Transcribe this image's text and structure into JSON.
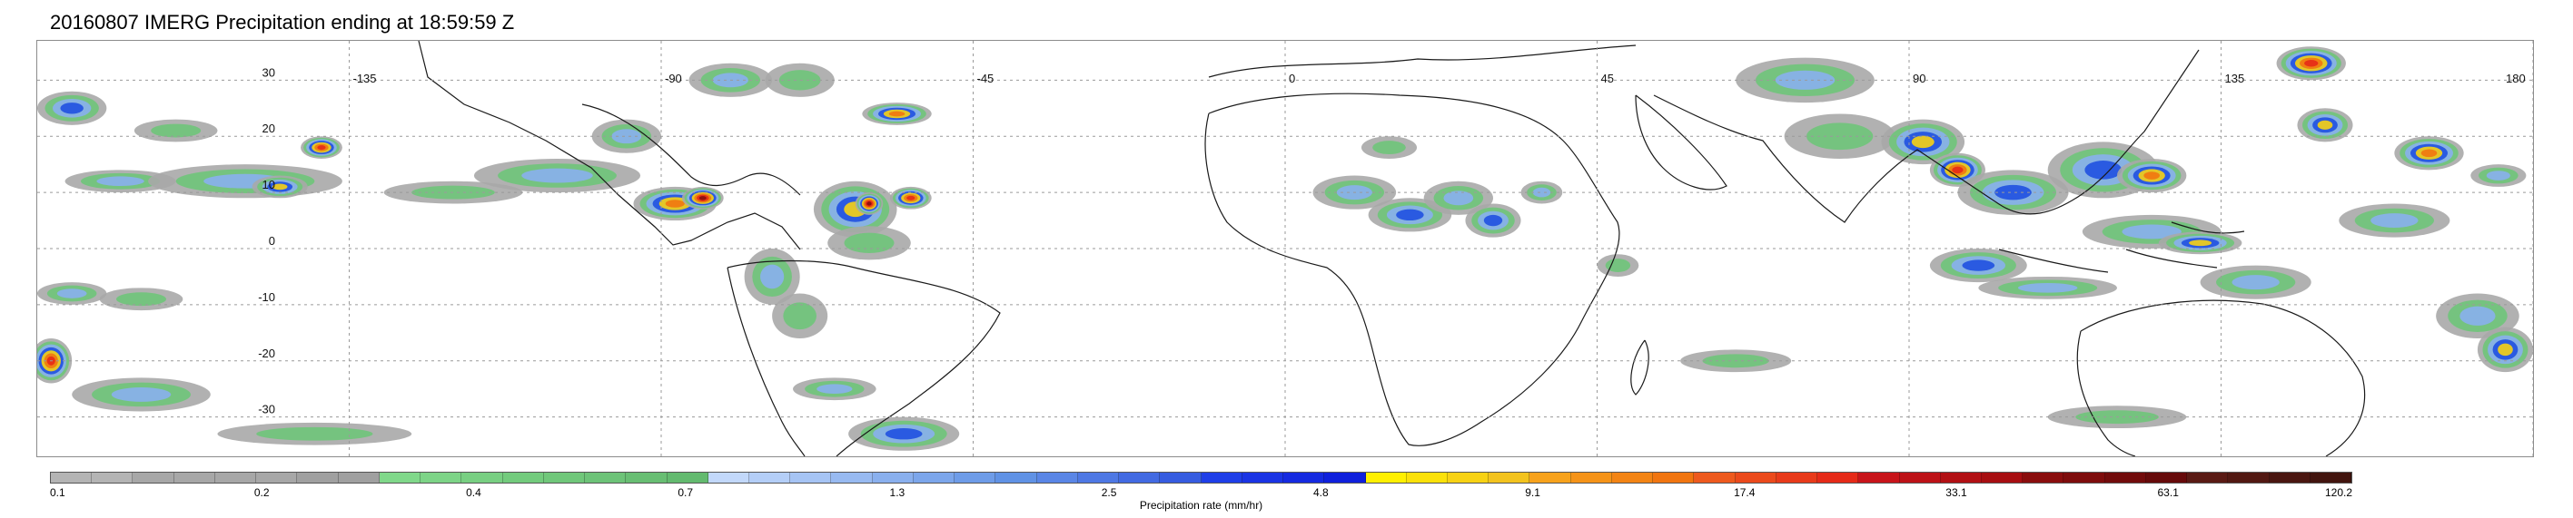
{
  "title": "20160807 IMERG Precipitation ending at 18:59:59 Z",
  "map": {
    "lon_range": [
      -180,
      180
    ],
    "lat_range": [
      -37,
      37
    ],
    "lon_ticks": [
      {
        "value": -135,
        "label": "-135"
      },
      {
        "value": -90,
        "label": "-90"
      },
      {
        "value": -45,
        "label": "-45"
      },
      {
        "value": 0,
        "label": "0"
      },
      {
        "value": 45,
        "label": "45"
      },
      {
        "value": 90,
        "label": "90"
      },
      {
        "value": 135,
        "label": "135"
      },
      {
        "value": 180,
        "label": "180"
      }
    ],
    "lat_ticks": [
      {
        "value": 30,
        "label": "30"
      },
      {
        "value": 20,
        "label": "20"
      },
      {
        "value": 10,
        "label": "10"
      },
      {
        "value": 0,
        "label": "0"
      },
      {
        "value": -10,
        "label": "-10"
      },
      {
        "value": -20,
        "label": "-20"
      },
      {
        "value": -30,
        "label": "-30"
      }
    ],
    "grid": true,
    "precip_cells": [
      {
        "lon": -175,
        "lat": 25,
        "rx": 5,
        "ry": 3,
        "level": 4
      },
      {
        "lon": -168,
        "lat": 12,
        "rx": 8,
        "ry": 2,
        "level": 3
      },
      {
        "lon": -160,
        "lat": 21,
        "rx": 6,
        "ry": 2,
        "level": 2
      },
      {
        "lon": -150,
        "lat": 12,
        "rx": 14,
        "ry": 3,
        "level": 3
      },
      {
        "lon": -145,
        "lat": 11,
        "rx": 4,
        "ry": 2,
        "level": 5
      },
      {
        "lon": -139,
        "lat": 18,
        "rx": 3,
        "ry": 2,
        "level": 7
      },
      {
        "lon": -120,
        "lat": 10,
        "rx": 10,
        "ry": 2,
        "level": 2
      },
      {
        "lon": -105,
        "lat": 13,
        "rx": 12,
        "ry": 3,
        "level": 3
      },
      {
        "lon": -95,
        "lat": 20,
        "rx": 5,
        "ry": 3,
        "level": 3
      },
      {
        "lon": -88,
        "lat": 8,
        "rx": 6,
        "ry": 3,
        "level": 6
      },
      {
        "lon": -84,
        "lat": 9,
        "rx": 3,
        "ry": 2,
        "level": 8
      },
      {
        "lon": -80,
        "lat": 30,
        "rx": 6,
        "ry": 3,
        "level": 3
      },
      {
        "lon": -70,
        "lat": 30,
        "rx": 5,
        "ry": 3,
        "level": 2
      },
      {
        "lon": -62,
        "lat": 7,
        "rx": 6,
        "ry": 5,
        "level": 5
      },
      {
        "lon": -60,
        "lat": 8,
        "rx": 2,
        "ry": 2,
        "level": 8
      },
      {
        "lon": -54,
        "lat": 9,
        "rx": 3,
        "ry": 2,
        "level": 7
      },
      {
        "lon": -60,
        "lat": 1,
        "rx": 6,
        "ry": 3,
        "level": 2
      },
      {
        "lon": -56,
        "lat": 24,
        "rx": 5,
        "ry": 2,
        "level": 6
      },
      {
        "lon": -74,
        "lat": -5,
        "rx": 4,
        "ry": 5,
        "level": 3
      },
      {
        "lon": -70,
        "lat": -12,
        "rx": 4,
        "ry": 4,
        "level": 2
      },
      {
        "lon": -175,
        "lat": -8,
        "rx": 5,
        "ry": 2,
        "level": 3
      },
      {
        "lon": -165,
        "lat": -9,
        "rx": 6,
        "ry": 2,
        "level": 2
      },
      {
        "lon": -178,
        "lat": -20,
        "rx": 3,
        "ry": 4,
        "level": 7
      },
      {
        "lon": -165,
        "lat": -26,
        "rx": 10,
        "ry": 3,
        "level": 3
      },
      {
        "lon": -140,
        "lat": -33,
        "rx": 14,
        "ry": 2,
        "level": 2
      },
      {
        "lon": -65,
        "lat": -25,
        "rx": 6,
        "ry": 2,
        "level": 3
      },
      {
        "lon": -55,
        "lat": -33,
        "rx": 8,
        "ry": 3,
        "level": 4
      },
      {
        "lon": 10,
        "lat": 10,
        "rx": 6,
        "ry": 3,
        "level": 3
      },
      {
        "lon": 18,
        "lat": 6,
        "rx": 6,
        "ry": 3,
        "level": 4
      },
      {
        "lon": 25,
        "lat": 9,
        "rx": 5,
        "ry": 3,
        "level": 3
      },
      {
        "lon": 15,
        "lat": 18,
        "rx": 4,
        "ry": 2,
        "level": 2
      },
      {
        "lon": 30,
        "lat": 5,
        "rx": 4,
        "ry": 3,
        "level": 4
      },
      {
        "lon": 37,
        "lat": 10,
        "rx": 3,
        "ry": 2,
        "level": 3
      },
      {
        "lon": 48,
        "lat": -3,
        "rx": 3,
        "ry": 2,
        "level": 2
      },
      {
        "lon": 75,
        "lat": 30,
        "rx": 10,
        "ry": 4,
        "level": 3
      },
      {
        "lon": 80,
        "lat": 20,
        "rx": 8,
        "ry": 4,
        "level": 2
      },
      {
        "lon": 92,
        "lat": 19,
        "rx": 6,
        "ry": 4,
        "level": 5
      },
      {
        "lon": 97,
        "lat": 14,
        "rx": 4,
        "ry": 3,
        "level": 7
      },
      {
        "lon": 105,
        "lat": 10,
        "rx": 8,
        "ry": 4,
        "level": 4
      },
      {
        "lon": 118,
        "lat": 14,
        "rx": 8,
        "ry": 5,
        "level": 4
      },
      {
        "lon": 125,
        "lat": 13,
        "rx": 5,
        "ry": 3,
        "level": 6
      },
      {
        "lon": 125,
        "lat": 3,
        "rx": 10,
        "ry": 3,
        "level": 3
      },
      {
        "lon": 132,
        "lat": 1,
        "rx": 6,
        "ry": 2,
        "level": 5
      },
      {
        "lon": 100,
        "lat": -3,
        "rx": 7,
        "ry": 3,
        "level": 4
      },
      {
        "lon": 110,
        "lat": -7,
        "rx": 10,
        "ry": 2,
        "level": 3
      },
      {
        "lon": 140,
        "lat": -6,
        "rx": 8,
        "ry": 3,
        "level": 3
      },
      {
        "lon": 148,
        "lat": 33,
        "rx": 5,
        "ry": 3,
        "level": 7
      },
      {
        "lon": 150,
        "lat": 22,
        "rx": 4,
        "ry": 3,
        "level": 5
      },
      {
        "lon": 165,
        "lat": 17,
        "rx": 5,
        "ry": 3,
        "level": 6
      },
      {
        "lon": 160,
        "lat": 5,
        "rx": 8,
        "ry": 3,
        "level": 3
      },
      {
        "lon": 175,
        "lat": 13,
        "rx": 4,
        "ry": 2,
        "level": 3
      },
      {
        "lon": 172,
        "lat": -12,
        "rx": 6,
        "ry": 4,
        "level": 3
      },
      {
        "lon": 176,
        "lat": -18,
        "rx": 4,
        "ry": 4,
        "level": 5
      },
      {
        "lon": 65,
        "lat": -20,
        "rx": 8,
        "ry": 2,
        "level": 2
      },
      {
        "lon": 120,
        "lat": -30,
        "rx": 10,
        "ry": 2,
        "level": 2
      }
    ]
  },
  "colorbar": {
    "label": "Precipitation rate (mm/hr)",
    "ticks": [
      "0.1",
      "0.2",
      "0.4",
      "0.7",
      "1.3",
      "2.5",
      "4.8",
      "9.1",
      "17.4",
      "33.1",
      "63.1",
      "120.2"
    ],
    "segments": [
      {
        "colors": [
          "#b4b4b4",
          "#b4b4b4",
          "#a7a7a7",
          "#a7a7a7"
        ]
      },
      {
        "colors": [
          "#a7a7a7",
          "#a7a7a7",
          "#a0a0a0",
          "#a0a0a0"
        ]
      },
      {
        "colors": [
          "#80d88a",
          "#7dd487",
          "#78cf82",
          "#73cb7d"
        ]
      },
      {
        "colors": [
          "#70c77a",
          "#6dc378",
          "#68be73",
          "#63ba6f"
        ]
      },
      {
        "colors": [
          "#c2d8fa",
          "#b4cef7",
          "#a6c4f4",
          "#98baf1"
        ]
      },
      {
        "colors": [
          "#8ab0ee",
          "#7ca6eb",
          "#6e9ce8",
          "#6092e5"
        ]
      },
      {
        "colors": [
          "#5a86e6",
          "#4e78e4",
          "#426ae2",
          "#365ce0"
        ]
      },
      {
        "colors": [
          "#1f3ee8",
          "#1a34e4",
          "#152ae0",
          "#0f20dc"
        ]
      },
      {
        "colors": [
          "#fff000",
          "#fbe10a",
          "#f7d214",
          "#f3c31e"
        ]
      },
      {
        "colors": [
          "#f7a21c",
          "#f59318",
          "#f38414",
          "#f17510"
        ]
      },
      {
        "colors": [
          "#ee5a1e",
          "#eb4a1c",
          "#e83a1a",
          "#e52a18"
        ]
      },
      {
        "colors": [
          "#c8141a",
          "#bd1217",
          "#b21014",
          "#a70e11"
        ]
      },
      {
        "colors": [
          "#8a0d0d",
          "#7e0c0c",
          "#720b0b",
          "#660a0a"
        ]
      },
      {
        "colors": [
          "#5a1a14",
          "#521812",
          "#4a1610",
          "#42140e"
        ]
      }
    ],
    "precip_level_colors": [
      "#a8a8a8",
      "#6fc57a",
      "#8ab0ee",
      "#2050e0",
      "#f7d214",
      "#f17510",
      "#e52a18",
      "#8a0d0d"
    ]
  }
}
